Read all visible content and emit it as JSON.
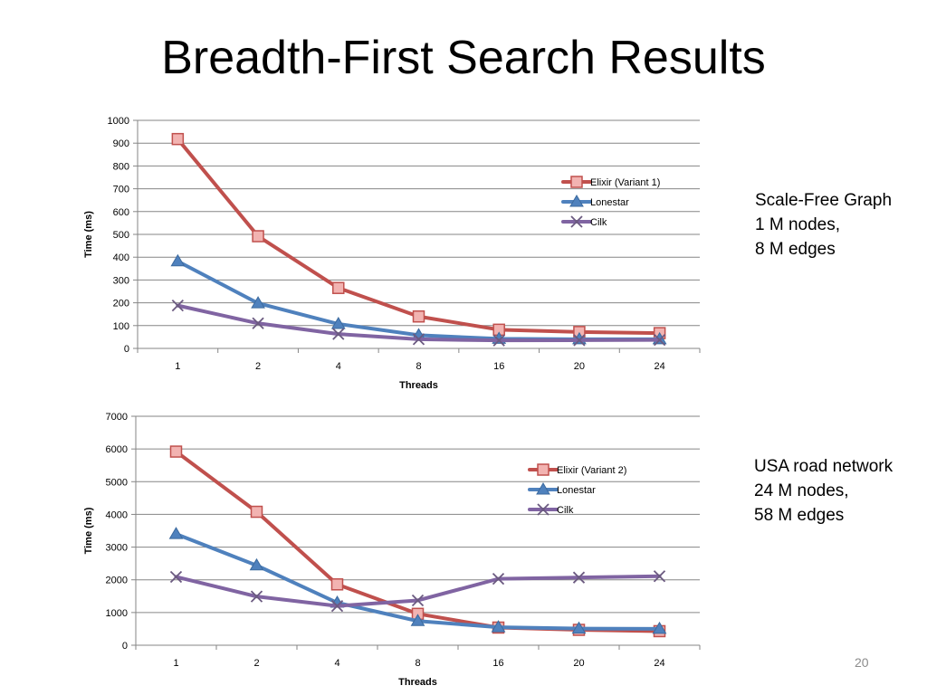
{
  "slide": {
    "title": "Breadth-First Search Results",
    "page_number": "20",
    "notes": [
      [
        "Scale-Free Graph",
        "1 M nodes,",
        "8 M edges"
      ],
      [
        "USA road network",
        "24 M nodes,",
        "58 M edges"
      ]
    ]
  },
  "colors": {
    "elixir": "#c0504d",
    "lonestar": "#4f81bd",
    "cilk": "#8064a2",
    "marker_fill": "#f2b3b1",
    "cilk_marker": "#6b5a80",
    "grid": "#868686"
  },
  "chart_data": [
    {
      "type": "line",
      "categories": [
        "1",
        "2",
        "4",
        "8",
        "16",
        "20",
        "24"
      ],
      "xlabel": "Threads",
      "ylabel": "Time (ms)",
      "ylim": [
        0,
        1000
      ],
      "yticks": [
        0,
        100,
        200,
        300,
        400,
        500,
        600,
        700,
        800,
        900,
        1000
      ],
      "grid": true,
      "legend_position": "top-right",
      "series": [
        {
          "name": "Elixir (Variant 1)",
          "marker": "square",
          "values": [
            918,
            492,
            265,
            140,
            82,
            72,
            67
          ]
        },
        {
          "name": "Lonestar",
          "marker": "triangle",
          "values": [
            382,
            198,
            107,
            58,
            42,
            40,
            40
          ]
        },
        {
          "name": "Cilk",
          "marker": "x",
          "values": [
            188,
            110,
            63,
            40,
            35,
            36,
            37
          ]
        }
      ]
    },
    {
      "type": "line",
      "categories": [
        "1",
        "2",
        "4",
        "8",
        "16",
        "20",
        "24"
      ],
      "xlabel": "Threads",
      "ylabel": "Time (ms)",
      "ylim": [
        0,
        7000
      ],
      "yticks": [
        0,
        1000,
        2000,
        3000,
        4000,
        5000,
        6000,
        7000
      ],
      "grid": true,
      "legend_position": "top-right",
      "series": [
        {
          "name": "Elixir (Variant 2)",
          "marker": "square",
          "values": [
            5920,
            4080,
            1860,
            960,
            540,
            470,
            430
          ]
        },
        {
          "name": "Lonestar",
          "marker": "triangle",
          "values": [
            3400,
            2440,
            1300,
            740,
            550,
            510,
            500
          ]
        },
        {
          "name": "Cilk",
          "marker": "x",
          "values": [
            2090,
            1490,
            1200,
            1370,
            2030,
            2070,
            2110
          ]
        }
      ]
    }
  ]
}
